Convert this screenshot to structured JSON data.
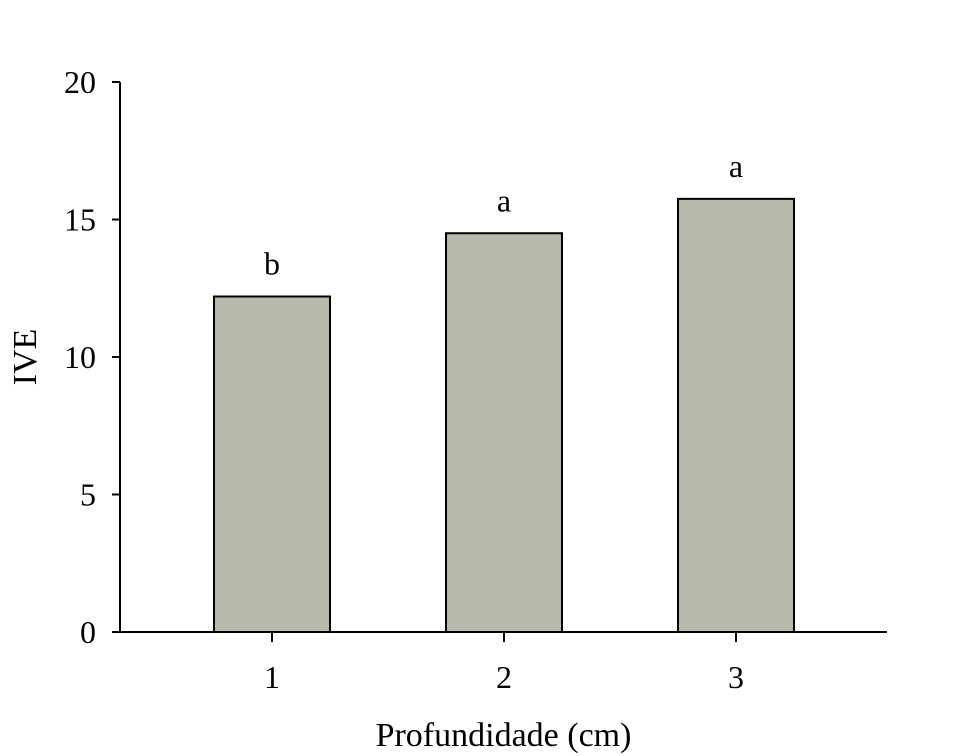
{
  "chart_data": {
    "type": "bar",
    "title": "",
    "xlabel": "Profundidade (cm)",
    "ylabel": "IVE",
    "categories": [
      "1",
      "2",
      "3"
    ],
    "values": [
      12.2,
      14.5,
      15.75
    ],
    "annotations": [
      "b",
      "a",
      "a"
    ],
    "ylim": [
      0,
      20
    ],
    "yticks": [
      0,
      5,
      10,
      15,
      20
    ],
    "ytick_labels": [
      "0",
      "5",
      "10",
      "15",
      "20"
    ],
    "grid": false,
    "legend": "none",
    "colors": {
      "bar_fill": "#b8b8ab",
      "bar_stroke": "#000000",
      "axis": "#000000"
    }
  }
}
